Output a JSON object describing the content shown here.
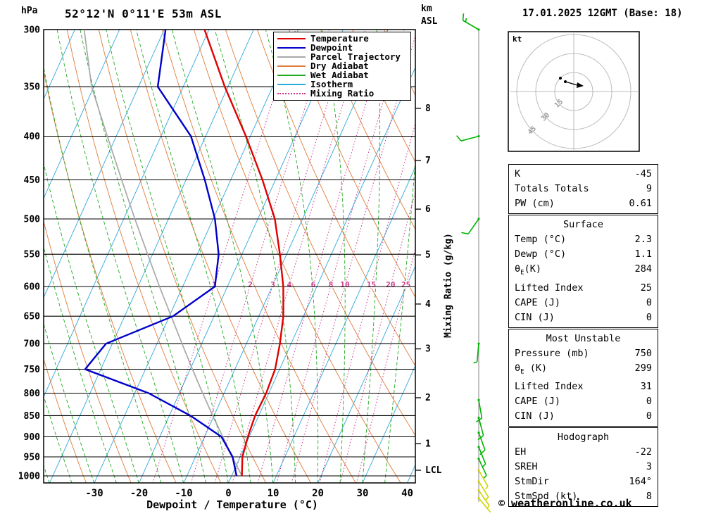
{
  "header": {
    "station": "52°12'N 0°11'E 53m ASL",
    "datetime": "17.01.2025 12GMT (Base: 18)",
    "pressure_unit": "hPa",
    "altitude_unit_line1": "km",
    "altitude_unit_line2": "ASL"
  },
  "axes": {
    "pressure_ticks": [
      300,
      350,
      400,
      450,
      500,
      550,
      600,
      650,
      700,
      750,
      800,
      850,
      900,
      950,
      1000
    ],
    "temp_ticks": [
      -30,
      -20,
      -10,
      0,
      10,
      20,
      30,
      40
    ],
    "km_ticks": [
      1,
      2,
      3,
      4,
      5,
      6,
      7,
      8
    ],
    "lcl_label": "LCL",
    "x_label": "Dewpoint / Temperature (°C)",
    "mixing_ratio_label": "Mixing Ratio (g/kg)"
  },
  "legend": [
    {
      "label": "Temperature",
      "color": "#e00000",
      "style": "solid"
    },
    {
      "label": "Dewpoint",
      "color": "#0000cc",
      "style": "solid"
    },
    {
      "label": "Parcel Trajectory",
      "color": "#a8a8a8",
      "style": "solid"
    },
    {
      "label": "Dry Adiabat",
      "color": "#e07b39",
      "style": "solid"
    },
    {
      "label": "Wet Adiabat",
      "color": "#22aa22",
      "style": "solid"
    },
    {
      "label": "Isotherm",
      "color": "#2fa8dc",
      "style": "solid"
    },
    {
      "label": "Mixing Ratio",
      "color": "#cc3388",
      "style": "dotted"
    }
  ],
  "chart_data": {
    "type": "skewt_log_p_sounding",
    "pressure_hPa": [
      1000,
      950,
      900,
      850,
      800,
      750,
      700,
      650,
      600,
      550,
      500,
      450,
      400,
      350,
      300
    ],
    "temperature_C": [
      2.3,
      0.5,
      -0.3,
      -0.8,
      -0.6,
      -1.0,
      -2.5,
      -4.5,
      -7.5,
      -11.5,
      -16.2,
      -22.9,
      -31.0,
      -40.7,
      -51.0
    ],
    "dewpoint_C": [
      1.1,
      -1.7,
      -6.2,
      -15.3,
      -26.9,
      -43.5,
      -41.4,
      -29.2,
      -22.8,
      -25.2,
      -29.6,
      -35.8,
      -43.3,
      -55.7,
      -59.7
    ],
    "parcel_C": [
      2.3,
      -1.8,
      -5.9,
      -10.3,
      -14.8,
      -19.5,
      -24.4,
      -29.6,
      -35.2,
      -41.1,
      -47.5,
      -54.4,
      -62.0,
      -70.5,
      -77.9
    ],
    "mixing_ratio_lines_g_kg": [
      1,
      2,
      3,
      4,
      6,
      8,
      10,
      15,
      20,
      25
    ],
    "isotherms_C": {
      "min": -120,
      "max": 40,
      "step": 10
    },
    "dry_adiabats_theta_K": {
      "min": 230,
      "max": 460,
      "step": 10
    },
    "wet_adiabats_start_C": {
      "min": -55,
      "max": 35,
      "step": 5
    },
    "pressure_range_hPa": [
      300,
      1000
    ],
    "temp_axis_range_C": [
      -40,
      40
    ]
  },
  "wind_barbs": [
    {
      "p": 300,
      "dir": 300,
      "spd": 15,
      "color": "#00b400"
    },
    {
      "p": 400,
      "dir": 255,
      "spd": 10,
      "color": "#00b400"
    },
    {
      "p": 500,
      "dir": 215,
      "spd": 10,
      "color": "#00b400"
    },
    {
      "p": 700,
      "dir": 185,
      "spd": 5,
      "color": "#00b400"
    },
    {
      "p": 815,
      "dir": 170,
      "spd": 10,
      "color": "#00b400"
    },
    {
      "p": 855,
      "dir": 165,
      "spd": 10,
      "color": "#00b400"
    },
    {
      "p": 890,
      "dir": 160,
      "spd": 10,
      "color": "#00b400"
    },
    {
      "p": 925,
      "dir": 158,
      "spd": 5,
      "color": "#00b400"
    },
    {
      "p": 955,
      "dir": 155,
      "spd": 5,
      "color": "#00b400"
    },
    {
      "p": 985,
      "dir": 150,
      "spd": 5,
      "color": "#cfd400"
    },
    {
      "p": 1015,
      "dir": 148,
      "spd": 5,
      "color": "#cfd400"
    },
    {
      "p": 1040,
      "dir": 145,
      "spd": 5,
      "color": "#cfd400"
    },
    {
      "p": 1062,
      "dir": 140,
      "spd": 3,
      "color": "#cfd400"
    }
  ],
  "hodograph": {
    "unit": "kt",
    "rings": [
      15,
      30,
      45
    ]
  },
  "tables": {
    "indices": {
      "rows": [
        {
          "label": "K",
          "value": "-45"
        },
        {
          "label": "Totals Totals",
          "value": "9"
        },
        {
          "label": "PW (cm)",
          "value": "0.61"
        }
      ]
    },
    "surface": {
      "title": "Surface",
      "rows": [
        {
          "label": "Temp (°C)",
          "value": "2.3"
        },
        {
          "label": "Dewp (°C)",
          "value": "1.1"
        },
        {
          "label": "θE(K)",
          "value": "284"
        },
        {
          "label": "Lifted Index",
          "value": "25"
        },
        {
          "label": "CAPE (J)",
          "value": "0"
        },
        {
          "label": "CIN (J)",
          "value": "0"
        }
      ]
    },
    "most_unstable": {
      "title": "Most Unstable",
      "rows": [
        {
          "label": "Pressure (mb)",
          "value": "750"
        },
        {
          "label": "θE (K)",
          "value": "299"
        },
        {
          "label": "Lifted Index",
          "value": "31"
        },
        {
          "label": "CAPE (J)",
          "value": "0"
        },
        {
          "label": "CIN (J)",
          "value": "0"
        }
      ]
    },
    "hodograph": {
      "title": "Hodograph",
      "rows": [
        {
          "label": "EH",
          "value": "-22"
        },
        {
          "label": "SREH",
          "value": "3"
        },
        {
          "label": "StmDir",
          "value": "164°"
        },
        {
          "label": "StmSpd (kt)",
          "value": "8"
        }
      ]
    }
  },
  "footer": {
    "credit": "© weatheronline.co.uk"
  }
}
